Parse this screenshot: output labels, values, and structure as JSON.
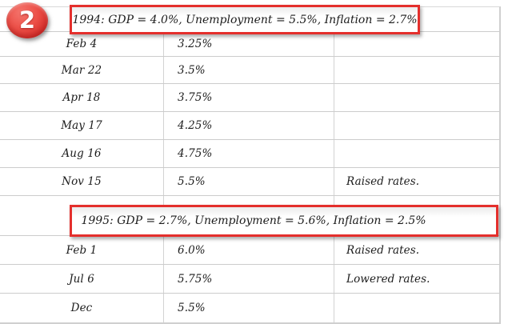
{
  "badge": {
    "label": "2"
  },
  "colors": {
    "accent_red": "#e42f2c",
    "badge_red_light": "#f4746c",
    "badge_red_dark": "#c2211f",
    "grid_line": "#cccccc",
    "text": "#1c1c1c"
  },
  "table": {
    "sections": [
      {
        "header": "1994: GDP = 4.0%, Unemployment = 5.5%, Inflation = 2.7%",
        "rows": [
          {
            "date": "Feb 4",
            "rate": "3.25%",
            "note": ""
          },
          {
            "date": "Mar 22",
            "rate": "3.5%",
            "note": ""
          },
          {
            "date": "Apr 18",
            "rate": "3.75%",
            "note": ""
          },
          {
            "date": "May 17",
            "rate": "4.25%",
            "note": ""
          },
          {
            "date": "Aug 16",
            "rate": "4.75%",
            "note": ""
          },
          {
            "date": "Nov 15",
            "rate": "5.5%",
            "note": "Raised rates."
          }
        ]
      },
      {
        "header": "1995: GDP = 2.7%, Unemployment = 5.6%, Inflation = 2.5%",
        "rows": [
          {
            "date": "Feb 1",
            "rate": "6.0%",
            "note": "Raised rates."
          },
          {
            "date": "Jul 6",
            "rate": "5.75%",
            "note": "Lowered rates."
          },
          {
            "date": "Dec",
            "rate": "5.5%",
            "note": ""
          }
        ]
      }
    ]
  }
}
